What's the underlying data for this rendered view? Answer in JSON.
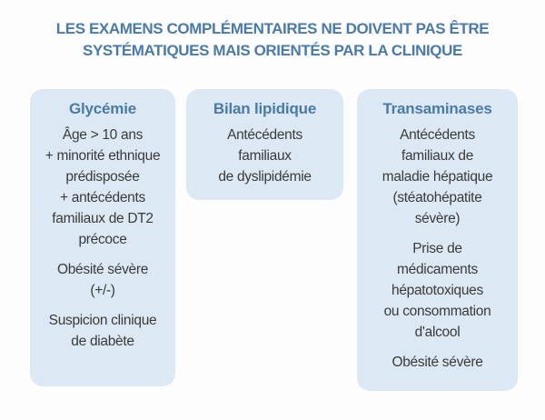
{
  "title": "LES EXAMENS COMPLÉMENTAIRES NE DOIVENT PAS ÊTRE\nSYSTÉMATIQUES MAIS ORIENTÉS PAR LA CLINIQUE",
  "colors": {
    "accent_blue": "#4a7ba6",
    "card_background": "#dce9f5",
    "body_text": "#3a3a3a",
    "page_background": "#fdfdfd"
  },
  "cards": [
    {
      "header": "Glycémie",
      "paragraphs": [
        "Âge > 10 ans\n+ minorité ethnique\nprédisposée\n+ antécédents\nfamiliaux de DT2\nprécoce",
        "Obésité sévère\n(+/-)",
        "Suspicion clinique\nde diabète"
      ]
    },
    {
      "header": "Bilan lipidique",
      "paragraphs": [
        "Antécédents\nfamiliaux\nde dyslipidémie"
      ]
    },
    {
      "header": "Transaminases",
      "paragraphs": [
        "Antécédents\nfamiliaux de\nmaladie hépatique\n(stéatohépatite\nsévère)",
        "Prise de\nmédicaments\nhépatotoxiques\nou consommation\nd'alcool",
        "Obésité sévère"
      ]
    }
  ]
}
